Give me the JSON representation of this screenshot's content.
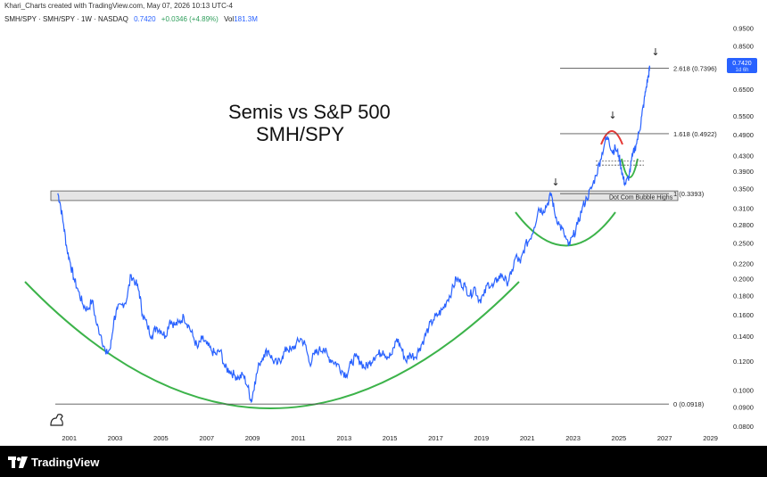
{
  "attribution": "Khari_Charts created with TradingView.com, May 07, 2026 10:13 UTC-4",
  "symbol_bar": {
    "symbol": "SMH/SPY · SMH/SPY · 1W · NASDAQ",
    "price": "0.7420",
    "change": "+0.0346 (+4.89%)",
    "vol_label": "Vol",
    "vol_value": "181.3M"
  },
  "brand": {
    "name": "TradingView"
  },
  "colors": {
    "line": "#2962ff",
    "arc_green": "#3cb34a",
    "arc_red": "#e53935",
    "accent": "#2962ff",
    "price_tag": "#2962ff"
  },
  "chart_data": {
    "type": "line",
    "title": "Semis vs S&P 500",
    "subtitle": "SMH/SPY",
    "y_scale": "log",
    "ylim": [
      0.08,
      1.0
    ],
    "xlim": [
      2000.0,
      2029.6
    ],
    "x_ticks": [
      "2001",
      "2003",
      "2005",
      "2007",
      "2009",
      "2011",
      "2013",
      "2015",
      "2017",
      "2019",
      "2021",
      "2023",
      "2025",
      "2027",
      "2029"
    ],
    "y_ticks": [
      "0.9500",
      "0.8500",
      "0.7500",
      "0.6500",
      "0.5500",
      "0.4900",
      "0.4300",
      "0.3900",
      "0.3500",
      "0.3100",
      "0.2800",
      "0.2500",
      "0.2200",
      "0.2000",
      "0.1800",
      "0.1600",
      "0.1400",
      "0.1200",
      "0.1000",
      "0.0900",
      "0.0800"
    ],
    "last_price_label": "0.7420",
    "last_price_sub": "1d 6h",
    "fib_levels": [
      {
        "label": "2.618 (0.7396)",
        "value": 0.7396
      },
      {
        "label": "1.618 (0.4922)",
        "value": 0.4922
      },
      {
        "label": "1 (0.3393)",
        "value": 0.3393
      },
      {
        "label": "0 (0.0918)",
        "value": 0.0918
      }
    ],
    "zone": {
      "label": "Dot Com Bubble Highs",
      "low": 0.325,
      "high": 0.345
    },
    "series": [
      {
        "x": [
          2000.5,
          2000.6,
          2000.75,
          2000.9,
          2001.05,
          2001.2,
          2001.4,
          2001.6,
          2001.8,
          2002.0,
          2002.2,
          2002.4,
          2002.6,
          2002.8,
          2002.95,
          2003.1,
          2003.3,
          2003.5,
          2003.7,
          2003.9,
          2004.05,
          2004.2,
          2004.4,
          2004.6,
          2004.8,
          2005.0,
          2005.2,
          2005.4,
          2005.6,
          2005.8,
          2006.0,
          2006.2,
          2006.4,
          2006.6,
          2006.8,
          2007.0,
          2007.2,
          2007.4,
          2007.6,
          2007.8,
          2008.0,
          2008.2,
          2008.4,
          2008.6,
          2008.8,
          2008.95,
          2009.1,
          2009.3,
          2009.5,
          2009.7,
          2009.9,
          2010.1,
          2010.3,
          2010.5,
          2010.7,
          2010.9,
          2011.1,
          2011.3,
          2011.5,
          2011.7,
          2011.9,
          2012.1,
          2012.3,
          2012.5,
          2012.7,
          2012.9,
          2013.1,
          2013.3,
          2013.5,
          2013.7,
          2013.9,
          2014.1,
          2014.3,
          2014.5,
          2014.7,
          2014.9,
          2015.1,
          2015.3,
          2015.5,
          2015.7,
          2015.9,
          2016.1,
          2016.3,
          2016.5,
          2016.7,
          2016.9,
          2017.1,
          2017.3,
          2017.5,
          2017.7,
          2017.9,
          2018.1,
          2018.3,
          2018.5,
          2018.7,
          2018.9,
          2019.1,
          2019.3,
          2019.5,
          2019.7,
          2019.9,
          2020.1,
          2020.3,
          2020.5,
          2020.7,
          2020.9,
          2021.1,
          2021.3,
          2021.5,
          2021.7,
          2021.9,
          2022.05,
          2022.2,
          2022.4,
          2022.6,
          2022.8,
          2023.0,
          2023.2,
          2023.4,
          2023.6,
          2023.8,
          2024.0,
          2024.2,
          2024.4,
          2024.55,
          2024.7,
          2024.85,
          2025.0,
          2025.1,
          2025.2,
          2025.3,
          2025.45,
          2025.6,
          2025.75,
          2025.9,
          2026.0,
          2026.1,
          2026.2,
          2026.3,
          2026.35
        ],
        "values": [
          0.34,
          0.32,
          0.28,
          0.24,
          0.22,
          0.2,
          0.185,
          0.17,
          0.165,
          0.175,
          0.15,
          0.14,
          0.125,
          0.13,
          0.155,
          0.165,
          0.17,
          0.175,
          0.205,
          0.195,
          0.185,
          0.16,
          0.15,
          0.14,
          0.148,
          0.145,
          0.14,
          0.155,
          0.15,
          0.152,
          0.158,
          0.15,
          0.14,
          0.13,
          0.138,
          0.133,
          0.128,
          0.125,
          0.128,
          0.115,
          0.113,
          0.11,
          0.108,
          0.11,
          0.102,
          0.093,
          0.105,
          0.118,
          0.125,
          0.128,
          0.12,
          0.118,
          0.123,
          0.13,
          0.128,
          0.133,
          0.138,
          0.133,
          0.118,
          0.125,
          0.128,
          0.13,
          0.123,
          0.12,
          0.118,
          0.113,
          0.11,
          0.118,
          0.123,
          0.12,
          0.115,
          0.118,
          0.123,
          0.125,
          0.128,
          0.123,
          0.125,
          0.138,
          0.13,
          0.12,
          0.125,
          0.123,
          0.13,
          0.138,
          0.148,
          0.155,
          0.16,
          0.165,
          0.175,
          0.185,
          0.2,
          0.195,
          0.19,
          0.18,
          0.19,
          0.175,
          0.18,
          0.195,
          0.19,
          0.2,
          0.205,
          0.195,
          0.205,
          0.23,
          0.22,
          0.245,
          0.255,
          0.275,
          0.31,
          0.305,
          0.32,
          0.34,
          0.3,
          0.28,
          0.265,
          0.245,
          0.26,
          0.28,
          0.31,
          0.33,
          0.35,
          0.38,
          0.42,
          0.47,
          0.48,
          0.44,
          0.45,
          0.43,
          0.4,
          0.37,
          0.36,
          0.38,
          0.43,
          0.46,
          0.5,
          0.55,
          0.6,
          0.66,
          0.71,
          0.742
        ]
      }
    ],
    "annotations": [
      "↓",
      "↓",
      "↓",
      "↓"
    ]
  }
}
